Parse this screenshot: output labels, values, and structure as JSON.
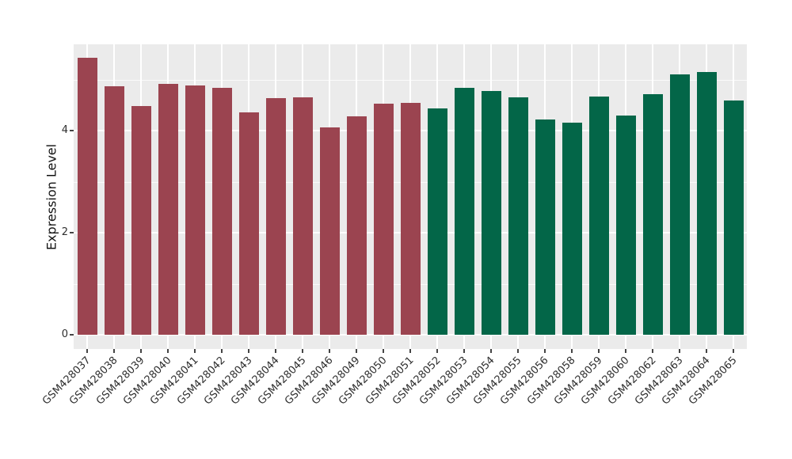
{
  "chart_data": {
    "type": "bar",
    "title": "",
    "xlabel": "",
    "ylabel": "Expression Level",
    "ylim": [
      0,
      5.69
    ],
    "yticks_major": [
      0,
      2,
      4
    ],
    "yticks_minor": [
      1,
      3,
      5
    ],
    "grid": true,
    "legend_position": "none",
    "panel_background": "#EBEBEB",
    "grid_color": "#FFFFFF",
    "axis_text_color": "#2E2E2E",
    "tick_mark_color": "#444444",
    "categories": [
      "GSM428037",
      "GSM428038",
      "GSM428039",
      "GSM428040",
      "GSM428041",
      "GSM428042",
      "GSM428043",
      "GSM428044",
      "GSM428045",
      "GSM428046",
      "GSM428049",
      "GSM428050",
      "GSM428051",
      "GSM428052",
      "GSM428053",
      "GSM428054",
      "GSM428055",
      "GSM428056",
      "GSM428058",
      "GSM428059",
      "GSM428060",
      "GSM428062",
      "GSM428063",
      "GSM428064",
      "GSM428065"
    ],
    "values": [
      5.42,
      4.87,
      4.48,
      4.92,
      4.89,
      4.84,
      4.35,
      4.64,
      4.65,
      4.06,
      4.28,
      4.53,
      4.55,
      4.43,
      4.84,
      4.78,
      4.65,
      4.21,
      4.16,
      4.66,
      4.3,
      4.72,
      5.1,
      5.14,
      4.59
    ],
    "groups": [
      {
        "key": "maroon",
        "color": "#9B4450",
        "category_count": 13
      },
      {
        "key": "green",
        "color": "#036648",
        "category_count": 12
      }
    ]
  }
}
